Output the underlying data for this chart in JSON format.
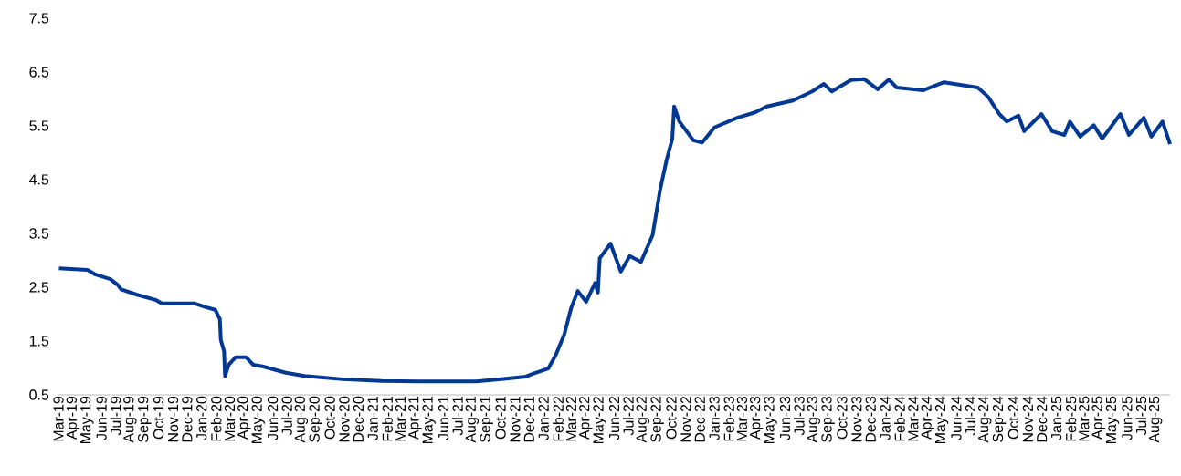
{
  "chart_data": {
    "type": "line",
    "color": "#003893",
    "grid": false,
    "xlim": [
      "2019-03-01",
      "2025-09-01"
    ],
    "ylim": [
      0.5,
      7.5
    ],
    "yticks": [
      0.5,
      1.5,
      2.5,
      3.5,
      4.5,
      5.5,
      6.5,
      7.5
    ],
    "xticks": [
      {
        "value": "2019-03-01",
        "label": "Mar-19"
      },
      {
        "value": "2019-04-01",
        "label": "Apr-19"
      },
      {
        "value": "2019-05-01",
        "label": "May-19"
      },
      {
        "value": "2019-06-01",
        "label": "Jun-19"
      },
      {
        "value": "2019-07-01",
        "label": "Jul-19"
      },
      {
        "value": "2019-08-01",
        "label": "Aug-19"
      },
      {
        "value": "2019-09-01",
        "label": "Sep-19"
      },
      {
        "value": "2019-10-01",
        "label": "Oct-19"
      },
      {
        "value": "2019-11-01",
        "label": "Nov-19"
      },
      {
        "value": "2019-12-01",
        "label": "Dec-19"
      },
      {
        "value": "2020-01-01",
        "label": "Jan-20"
      },
      {
        "value": "2020-02-01",
        "label": "Feb-20"
      },
      {
        "value": "2020-03-01",
        "label": "Mar-20"
      },
      {
        "value": "2020-04-01",
        "label": "Apr-20"
      },
      {
        "value": "2020-05-01",
        "label": "May-20"
      },
      {
        "value": "2020-06-01",
        "label": "Jun-20"
      },
      {
        "value": "2020-07-01",
        "label": "Jul-20"
      },
      {
        "value": "2020-08-01",
        "label": "Aug-20"
      },
      {
        "value": "2020-09-01",
        "label": "Sep-20"
      },
      {
        "value": "2020-10-01",
        "label": "Oct-20"
      },
      {
        "value": "2020-11-01",
        "label": "Nov-20"
      },
      {
        "value": "2020-12-01",
        "label": "Dec-20"
      },
      {
        "value": "2021-01-01",
        "label": "Jan-21"
      },
      {
        "value": "2021-02-01",
        "label": "Feb-21"
      },
      {
        "value": "2021-03-01",
        "label": "Mar-21"
      },
      {
        "value": "2021-04-01",
        "label": "Apr-21"
      },
      {
        "value": "2021-05-01",
        "label": "May-21"
      },
      {
        "value": "2021-06-01",
        "label": "Jun-21"
      },
      {
        "value": "2021-07-01",
        "label": "Jul-21"
      },
      {
        "value": "2021-08-01",
        "label": "Aug-21"
      },
      {
        "value": "2021-09-01",
        "label": "Sep-21"
      },
      {
        "value": "2021-10-01",
        "label": "Oct-21"
      },
      {
        "value": "2021-11-01",
        "label": "Nov-21"
      },
      {
        "value": "2021-12-01",
        "label": "Dec-21"
      },
      {
        "value": "2022-01-01",
        "label": "Jan-22"
      },
      {
        "value": "2022-02-01",
        "label": "Feb-22"
      },
      {
        "value": "2022-03-01",
        "label": "Mar-22"
      },
      {
        "value": "2022-04-01",
        "label": "Apr-22"
      },
      {
        "value": "2022-05-01",
        "label": "May-22"
      },
      {
        "value": "2022-06-01",
        "label": "Jun-22"
      },
      {
        "value": "2022-07-01",
        "label": "Jul-22"
      },
      {
        "value": "2022-08-01",
        "label": "Aug-22"
      },
      {
        "value": "2022-09-01",
        "label": "Sep-22"
      },
      {
        "value": "2022-10-01",
        "label": "Oct-22"
      },
      {
        "value": "2022-11-01",
        "label": "Nov-22"
      },
      {
        "value": "2022-12-01",
        "label": "Dec-22"
      },
      {
        "value": "2023-01-01",
        "label": "Jan-23"
      },
      {
        "value": "2023-02-01",
        "label": "Feb-23"
      },
      {
        "value": "2023-03-01",
        "label": "Mar-23"
      },
      {
        "value": "2023-04-01",
        "label": "Apr-23"
      },
      {
        "value": "2023-05-01",
        "label": "May-23"
      },
      {
        "value": "2023-06-01",
        "label": "Jun-23"
      },
      {
        "value": "2023-07-01",
        "label": "Jul-23"
      },
      {
        "value": "2023-08-01",
        "label": "Aug-23"
      },
      {
        "value": "2023-09-01",
        "label": "Sep-23"
      },
      {
        "value": "2023-10-01",
        "label": "Oct-23"
      },
      {
        "value": "2023-11-01",
        "label": "Nov-23"
      },
      {
        "value": "2023-12-01",
        "label": "Dec-23"
      },
      {
        "value": "2024-01-01",
        "label": "Jan-24"
      },
      {
        "value": "2024-02-01",
        "label": "Feb-24"
      },
      {
        "value": "2024-03-01",
        "label": "Mar-24"
      },
      {
        "value": "2024-04-01",
        "label": "Apr-24"
      },
      {
        "value": "2024-05-01",
        "label": "May-24"
      },
      {
        "value": "2024-06-01",
        "label": "Jun-24"
      },
      {
        "value": "2024-07-01",
        "label": "Jul-24"
      },
      {
        "value": "2024-08-01",
        "label": "Aug-24"
      },
      {
        "value": "2024-09-01",
        "label": "Sep-24"
      },
      {
        "value": "2024-10-01",
        "label": "Oct-24"
      },
      {
        "value": "2024-11-01",
        "label": "Nov-24"
      },
      {
        "value": "2024-12-01",
        "label": "Dec-24"
      },
      {
        "value": "2025-01-01",
        "label": "Jan-25"
      },
      {
        "value": "2025-02-01",
        "label": "Feb-25"
      },
      {
        "value": "2025-03-01",
        "label": "Mar-25"
      },
      {
        "value": "2025-04-01",
        "label": "Apr-25"
      },
      {
        "value": "2025-05-01",
        "label": "May-25"
      },
      {
        "value": "2025-06-01",
        "label": "Jun-25"
      },
      {
        "value": "2025-07-01",
        "label": "Jul-25"
      },
      {
        "value": "2025-08-01",
        "label": "Aug-25"
      }
    ],
    "x": [
      "2019-03-02",
      "2019-05-02",
      "2019-05-18",
      "2019-06-20",
      "2019-07-06",
      "2019-07-13",
      "2019-08-16",
      "2019-09-26",
      "2019-10-08",
      "2019-12-16",
      "2020-01-10",
      "2020-01-30",
      "2020-02-09",
      "2020-02-11",
      "2020-02-18",
      "2020-02-20",
      "2020-02-28",
      "2020-03-14",
      "2020-04-05",
      "2020-04-20",
      "2020-05-10",
      "2020-06-29",
      "2020-08-08",
      "2020-10-29",
      "2021-01-20",
      "2021-04-08",
      "2021-08-10",
      "2021-10-13",
      "2021-11-24",
      "2021-12-09",
      "2022-01-11",
      "2022-01-27",
      "2022-02-14",
      "2022-03-01",
      "2022-03-15",
      "2022-04-02",
      "2022-04-21",
      "2022-04-27",
      "2022-05-01",
      "2022-05-24",
      "2022-06-15",
      "2022-07-04",
      "2022-07-28",
      "2022-08-22",
      "2022-09-07",
      "2022-09-21",
      "2022-10-03",
      "2022-10-07",
      "2022-10-18",
      "2022-11-17",
      "2022-12-06",
      "2023-01-01",
      "2023-02-19",
      "2023-03-29",
      "2023-04-23",
      "2023-06-18",
      "2023-07-29",
      "2023-08-23",
      "2023-09-09",
      "2023-10-20",
      "2023-11-17",
      "2023-12-16",
      "2024-01-09",
      "2024-01-26",
      "2024-03-22",
      "2024-05-06",
      "2024-07-17",
      "2024-08-08",
      "2024-09-01",
      "2024-09-17",
      "2024-10-12",
      "2024-10-24",
      "2024-11-30",
      "2024-12-23",
      "2025-01-18",
      "2025-01-30",
      "2025-02-21",
      "2025-03-22",
      "2025-04-09",
      "2025-05-18",
      "2025-06-05",
      "2025-07-07",
      "2025-07-23",
      "2025-08-16",
      "2025-09-01"
    ],
    "values": [
      2.85,
      2.82,
      2.74,
      2.65,
      2.54,
      2.46,
      2.36,
      2.26,
      2.2,
      2.2,
      2.13,
      2.08,
      1.91,
      1.52,
      1.31,
      0.85,
      1.06,
      1.2,
      1.2,
      1.06,
      1.03,
      0.91,
      0.85,
      0.79,
      0.76,
      0.75,
      0.75,
      0.8,
      0.84,
      0.89,
      0.99,
      1.24,
      1.62,
      2.12,
      2.43,
      2.23,
      2.58,
      2.4,
      3.04,
      3.31,
      2.79,
      3.08,
      2.97,
      3.47,
      4.31,
      4.87,
      5.26,
      5.86,
      5.58,
      5.23,
      5.19,
      5.47,
      5.65,
      5.75,
      5.86,
      5.97,
      6.14,
      6.28,
      6.14,
      6.35,
      6.37,
      6.18,
      6.36,
      6.21,
      6.16,
      6.31,
      6.21,
      6.04,
      5.72,
      5.58,
      5.69,
      5.4,
      5.72,
      5.4,
      5.33,
      5.58,
      5.3,
      5.51,
      5.26,
      5.72,
      5.33,
      5.65,
      5.3,
      5.58,
      5.16
    ]
  }
}
